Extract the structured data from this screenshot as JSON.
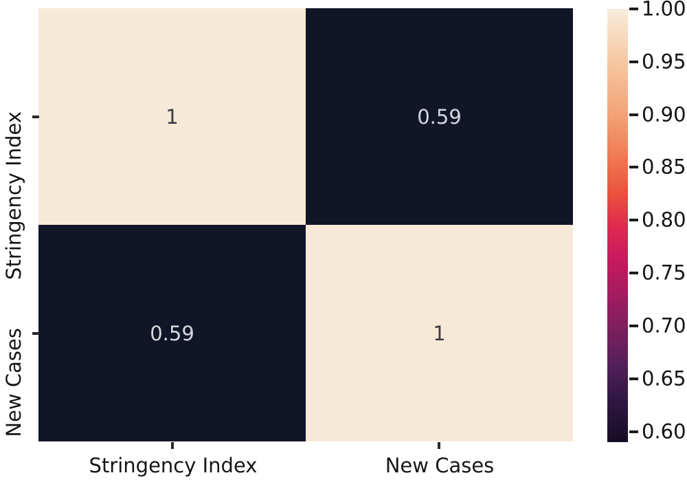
{
  "chart_data": {
    "type": "heatmap",
    "title": "",
    "colormap": "rocket",
    "x_categories": [
      "Stringency Index",
      "New Cases"
    ],
    "y_categories": [
      "Stringency Index",
      "New Cases"
    ],
    "matrix": [
      [
        1,
        0.59
      ],
      [
        0.59,
        1
      ]
    ],
    "cell_labels": [
      [
        "1",
        "0.59"
      ],
      [
        "0.59",
        "1"
      ]
    ],
    "cell_colors": [
      [
        "#f7e9d7",
        "#111528"
      ],
      [
        "#111528",
        "#f7e9d7"
      ]
    ],
    "annot_colors": [
      [
        "#3a3a42",
        "#d6d7de"
      ],
      [
        "#d6d7de",
        "#3a3a42"
      ]
    ],
    "grid": false,
    "legend_position": "none",
    "colorbar": {
      "position": "right",
      "vmin": 0.59,
      "vmax": 1.0,
      "tick_values": [
        1.0,
        0.95,
        0.9,
        0.85,
        0.8,
        0.75,
        0.7,
        0.65,
        0.6
      ],
      "tick_labels": [
        "1.00",
        "0.95",
        "0.90",
        "0.85",
        "0.80",
        "0.75",
        "0.70",
        "0.65",
        "0.60"
      ],
      "gradient_stops": [
        {
          "pos": 0.0,
          "color": "#f9ecdc"
        },
        {
          "pos": 0.12,
          "color": "#f6c8a2"
        },
        {
          "pos": 0.24,
          "color": "#f2a478"
        },
        {
          "pos": 0.34,
          "color": "#ef7b52"
        },
        {
          "pos": 0.43,
          "color": "#e9503c"
        },
        {
          "pos": 0.5,
          "color": "#e02a50"
        },
        {
          "pos": 0.58,
          "color": "#c61a5e"
        },
        {
          "pos": 0.66,
          "color": "#a31b60"
        },
        {
          "pos": 0.74,
          "color": "#7c1f5d"
        },
        {
          "pos": 0.82,
          "color": "#54205a"
        },
        {
          "pos": 0.9,
          "color": "#311744"
        },
        {
          "pos": 1.0,
          "color": "#150d23"
        }
      ]
    }
  }
}
